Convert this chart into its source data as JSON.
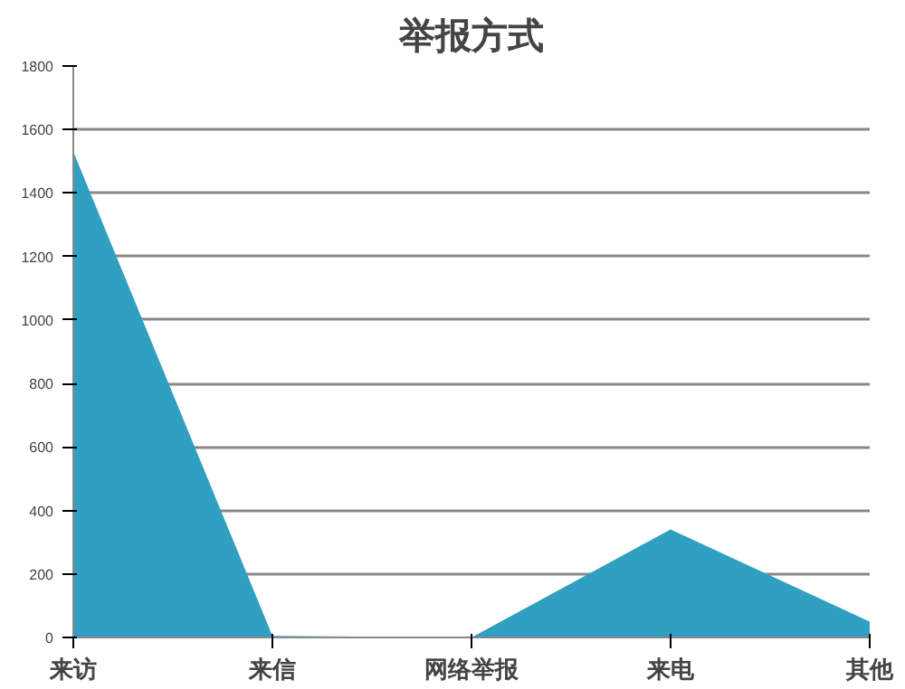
{
  "chart_data": {
    "type": "area",
    "title": "举报方式",
    "categories": [
      "来访",
      "来信",
      "网络举报",
      "来电",
      "其他"
    ],
    "values": [
      1530,
      5,
      0,
      340,
      50
    ],
    "color": "#2f9fc2",
    "ylim": [
      0,
      1800
    ],
    "yticks": [
      0,
      200,
      400,
      600,
      800,
      1000,
      1200,
      1400,
      1600,
      1800
    ],
    "grid": "y"
  }
}
